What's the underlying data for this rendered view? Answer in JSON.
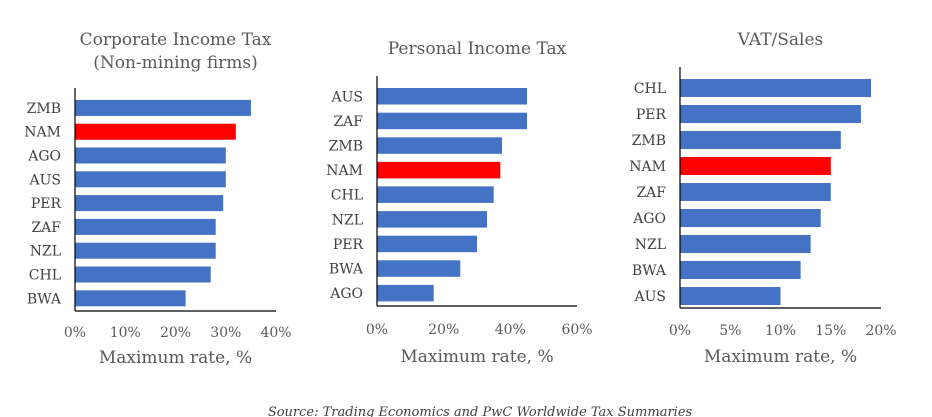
{
  "colors": {
    "bar": "#4472C4",
    "highlight": "#FF0000",
    "axis": "#000000"
  },
  "source": "Source: Trading Economics and PwC Worldwide Tax Summaries",
  "chart_data": [
    {
      "type": "bar",
      "orientation": "horizontal",
      "title": [
        "Corporate Income Tax",
        "(Non-mining firms)"
      ],
      "xlabel": "Maximum rate, %",
      "categories": [
        "ZMB",
        "NAM",
        "AGO",
        "AUS",
        "PER",
        "ZAF",
        "NZL",
        "CHL",
        "BWA"
      ],
      "values": [
        35,
        32,
        30,
        30,
        29.5,
        28,
        28,
        27,
        22
      ],
      "highlight": "NAM",
      "xlim": [
        0,
        40
      ],
      "xticks": [
        "0%",
        "10%",
        "20%",
        "30%",
        "40%"
      ]
    },
    {
      "type": "bar",
      "orientation": "horizontal",
      "title": [
        "Personal Income Tax"
      ],
      "xlabel": "Maximum rate, %",
      "categories": [
        "AUS",
        "ZAF",
        "ZMB",
        "NAM",
        "CHL",
        "NZL",
        "PER",
        "BWA",
        "AGO"
      ],
      "values": [
        45,
        45,
        37.5,
        37,
        35,
        33,
        30,
        25,
        17
      ],
      "highlight": "NAM",
      "xlim": [
        0,
        60
      ],
      "xticks": [
        "0%",
        "20%",
        "40%",
        "60%"
      ]
    },
    {
      "type": "bar",
      "orientation": "horizontal",
      "title": [
        "VAT/Sales"
      ],
      "xlabel": "Maximum rate, %",
      "categories": [
        "CHL",
        "PER",
        "ZMB",
        "NAM",
        "ZAF",
        "AGO",
        "NZL",
        "BWA",
        "AUS"
      ],
      "values": [
        19,
        18,
        16,
        15,
        15,
        14,
        13,
        12,
        10
      ],
      "highlight": "NAM",
      "xlim": [
        0,
        20
      ],
      "xticks": [
        "0%",
        "5%",
        "10%",
        "15%",
        "20%"
      ]
    }
  ]
}
